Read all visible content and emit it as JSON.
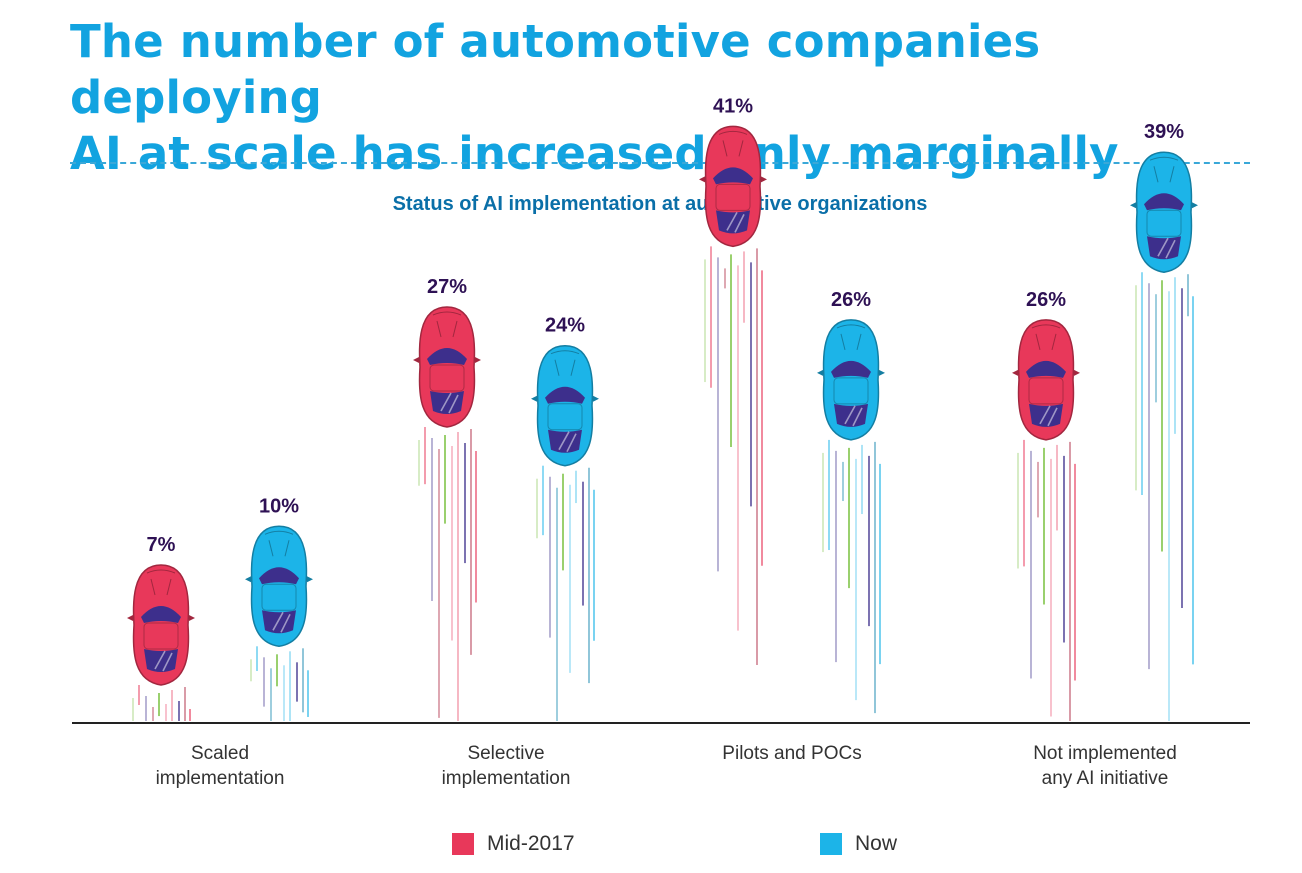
{
  "headline": {
    "line1": "The number of automotive companies deploying",
    "line2": "AI at scale has increased only marginally"
  },
  "chart_data": {
    "type": "bar",
    "title": "Status of AI implementation at automotive organizations",
    "categories": [
      [
        "Scaled",
        "implementation"
      ],
      [
        "Selective",
        "implementation"
      ],
      [
        "Pilots and POCs"
      ],
      [
        "Not implemented",
        "any AI initiative"
      ]
    ],
    "series": [
      {
        "name": "Mid-2017",
        "values": [
          7,
          27,
          41,
          26
        ],
        "labels": [
          "7%",
          "27%",
          "41%",
          "26%"
        ],
        "color": "#e8385a"
      },
      {
        "name": "Now",
        "values": [
          10,
          24,
          26,
          39
        ],
        "labels": [
          "10%",
          "24%",
          "26%",
          "39%"
        ],
        "color": "#1cb4e8"
      }
    ],
    "ylim": [
      0,
      50
    ],
    "xlabel": "",
    "ylabel": "",
    "grid": false,
    "legend": "bottom-center",
    "mark_style": "car"
  },
  "colors": {
    "title": "#12a3e0",
    "subtitle": "#0a6fa8",
    "value_label": "#2e1154",
    "windshield": "#3d2f8c"
  }
}
